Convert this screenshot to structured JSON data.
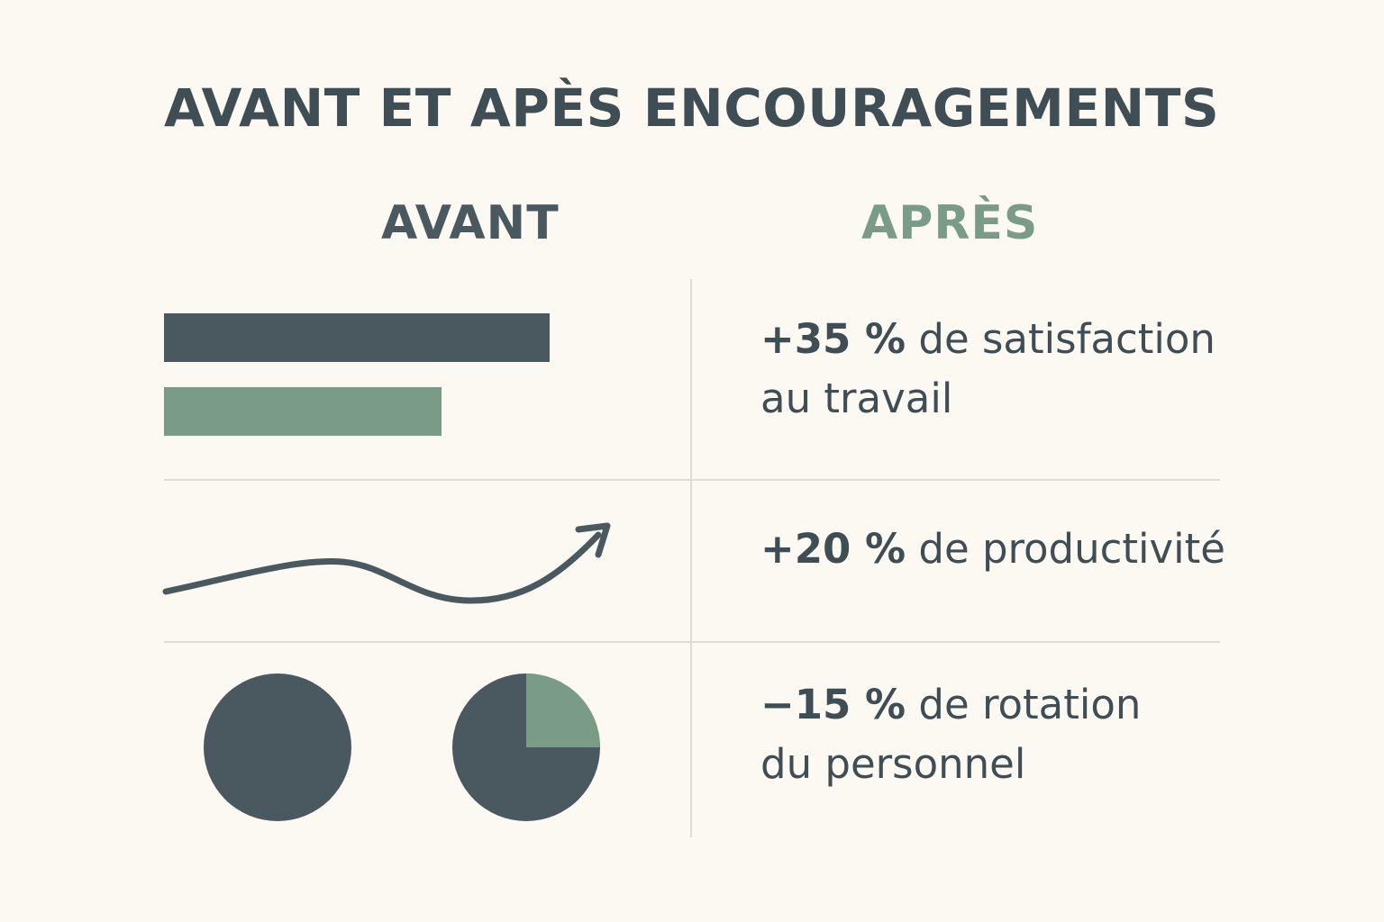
{
  "title": "AVANT ET APÈS ENCOURAGEMENTS",
  "columns": {
    "before": "AVANT",
    "after": "APRÈS"
  },
  "colors": {
    "dark": "#4a5960",
    "green": "#7a9c86",
    "background": "#fcf8f2"
  },
  "chart_data": [
    {
      "type": "bar",
      "orientation": "horizontal",
      "series": [
        {
          "values": [
            100
          ],
          "color": "#4a5960"
        },
        {
          "values": [
            72
          ],
          "color": "#7a9c86"
        }
      ]
    },
    {
      "type": "line",
      "trend": "up",
      "arrow": true
    },
    {
      "type": "pie",
      "charts": [
        {
          "slices": [
            {
              "value": 100,
              "color": "#4a5960"
            }
          ]
        },
        {
          "slices": [
            {
              "value": 75,
              "color": "#4a5960"
            },
            {
              "value": 25,
              "color": "#7a9c86"
            }
          ]
        }
      ]
    }
  ],
  "stats": [
    {
      "value": "+35 %",
      "line1": " de satisfaction",
      "line2": "au travail"
    },
    {
      "value": "+20 %",
      "line1": " de productivité",
      "line2": ""
    },
    {
      "value": "−15 %",
      "line1": " de rotation",
      "line2": "du personnel"
    }
  ]
}
